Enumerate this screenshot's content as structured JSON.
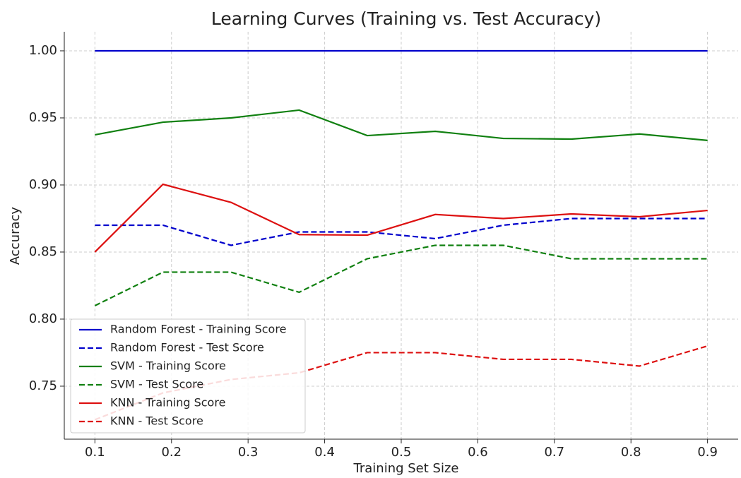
{
  "chart_data": {
    "type": "line",
    "title": "Learning Curves (Training vs. Test Accuracy)",
    "x_label": "Training Set Size",
    "y_label": "Accuracy",
    "x": [
      0.1,
      0.1889,
      0.2778,
      0.3667,
      0.4556,
      0.5444,
      0.6333,
      0.7222,
      0.8111,
      0.9
    ],
    "series": [
      {
        "name": "Random Forest - Training Score",
        "color": "#0000cc",
        "linestyle": "solid",
        "values": [
          1.0,
          1.0,
          1.0,
          1.0,
          1.0,
          1.0,
          1.0,
          1.0,
          1.0,
          1.0
        ]
      },
      {
        "name": "Random Forest - Test Score",
        "color": "#0000cc",
        "linestyle": "dashed",
        "values": [
          0.87,
          0.87,
          0.855,
          0.865,
          0.865,
          0.86,
          0.87,
          0.875,
          0.875,
          0.875
        ]
      },
      {
        "name": "SVM - Training Score",
        "color": "#108010",
        "linestyle": "solid",
        "values": [
          0.9374,
          0.9468,
          0.95,
          0.9558,
          0.9368,
          0.94,
          0.9347,
          0.9342,
          0.938,
          0.9332
        ]
      },
      {
        "name": "SVM - Test Score",
        "color": "#108010",
        "linestyle": "dashed",
        "values": [
          0.81,
          0.835,
          0.835,
          0.82,
          0.845,
          0.855,
          0.855,
          0.845,
          0.845,
          0.845
        ]
      },
      {
        "name": "KNN - Training Score",
        "color": "#dd1010",
        "linestyle": "solid",
        "values": [
          0.85,
          0.9005,
          0.887,
          0.863,
          0.8626,
          0.878,
          0.875,
          0.8784,
          0.8763,
          0.881
        ]
      },
      {
        "name": "KNN - Test Score",
        "color": "#dd1010",
        "linestyle": "dashed",
        "values": [
          0.725,
          0.745,
          0.755,
          0.76,
          0.775,
          0.775,
          0.77,
          0.77,
          0.765,
          0.78
        ]
      }
    ],
    "xlim": [
      0.06,
      0.94
    ],
    "ylim": [
      0.7105,
      1.0142
    ],
    "xticks": [
      0.1,
      0.2,
      0.3,
      0.4,
      0.5,
      0.6,
      0.7,
      0.8,
      0.9
    ],
    "yticks": [
      0.75,
      {
        "value": 0.8,
        "label": "0.80"
      },
      0.85,
      {
        "value": 0.9,
        "label": "0.90"
      },
      0.95,
      {
        "value": 1.0,
        "label": "1.00"
      }
    ],
    "grid": true,
    "legend": "lower left"
  }
}
